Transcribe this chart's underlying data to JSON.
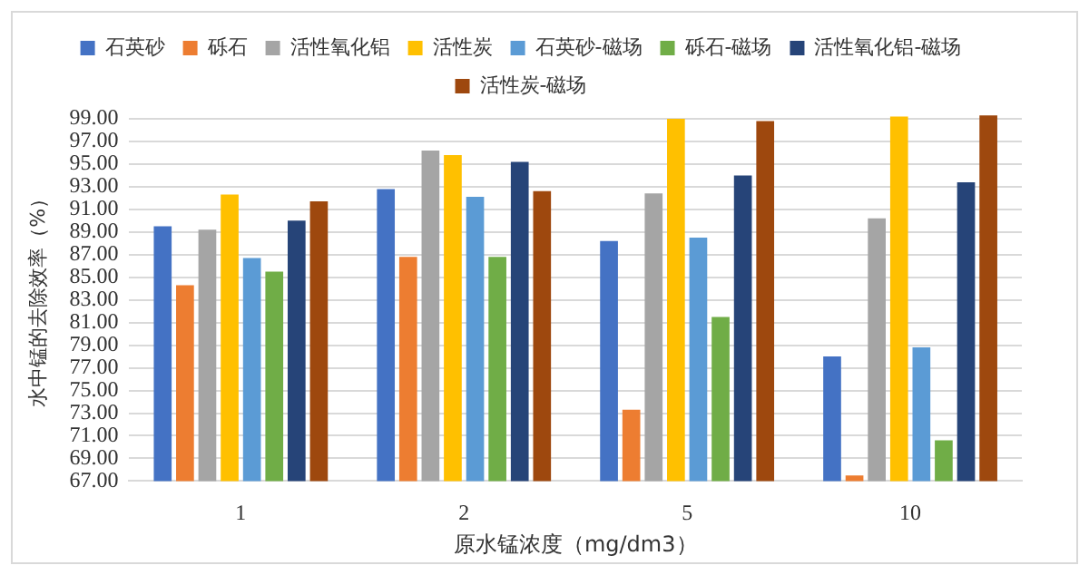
{
  "chart_data": {
    "type": "bar",
    "xlabel": "原水锰浓度（mg/dm3）",
    "ylabel": "水中锰的去除效率（%）",
    "categories": [
      "1",
      "2",
      "5",
      "10"
    ],
    "series": [
      {
        "name": "石英砂",
        "color": "#4472c4",
        "values": [
          89.5,
          92.8,
          88.2,
          78.0
        ]
      },
      {
        "name": "砾石",
        "color": "#ed7d31",
        "values": [
          84.3,
          86.8,
          73.3,
          67.5
        ]
      },
      {
        "name": "活性氧化铝",
        "color": "#a5a5a5",
        "values": [
          89.2,
          96.2,
          92.4,
          90.2
        ]
      },
      {
        "name": "活性炭",
        "color": "#ffc000",
        "values": [
          92.3,
          95.8,
          99.0,
          99.2
        ]
      },
      {
        "name": "石英砂-磁场",
        "color": "#5b9bd5",
        "values": [
          86.7,
          92.1,
          88.5,
          78.8
        ]
      },
      {
        "name": "砾石-磁场",
        "color": "#70ad47",
        "values": [
          85.5,
          86.8,
          81.5,
          70.6
        ]
      },
      {
        "name": "活性氧化铝-磁场",
        "color": "#264478",
        "values": [
          90.0,
          95.2,
          94.0,
          93.4
        ]
      },
      {
        "name": "活性炭-磁场",
        "color": "#9e480e",
        "values": [
          91.7,
          92.6,
          98.8,
          99.3
        ]
      }
    ],
    "ylim": [
      67,
      99.4
    ],
    "yticks": [
      {
        "value": 67,
        "label": "67.00"
      },
      {
        "value": 69,
        "label": "69.00"
      },
      {
        "value": 71,
        "label": "71.00"
      },
      {
        "value": 73,
        "label": "73.00"
      },
      {
        "value": 75,
        "label": "75.00"
      },
      {
        "value": 77,
        "label": "77.00"
      },
      {
        "value": 79,
        "label": "79.00"
      },
      {
        "value": 81,
        "label": "81.00"
      },
      {
        "value": 83,
        "label": "83.00"
      },
      {
        "value": 85,
        "label": "85.00"
      },
      {
        "value": 87,
        "label": "87.00"
      },
      {
        "value": 89,
        "label": "89.00"
      },
      {
        "value": 91,
        "label": "91.00"
      },
      {
        "value": 93,
        "label": "93.00"
      },
      {
        "value": 95,
        "label": "95.00"
      },
      {
        "value": 97,
        "label": "97.00"
      },
      {
        "value": 99,
        "label": "99.00"
      }
    ],
    "grid": "y",
    "legend": "top"
  }
}
